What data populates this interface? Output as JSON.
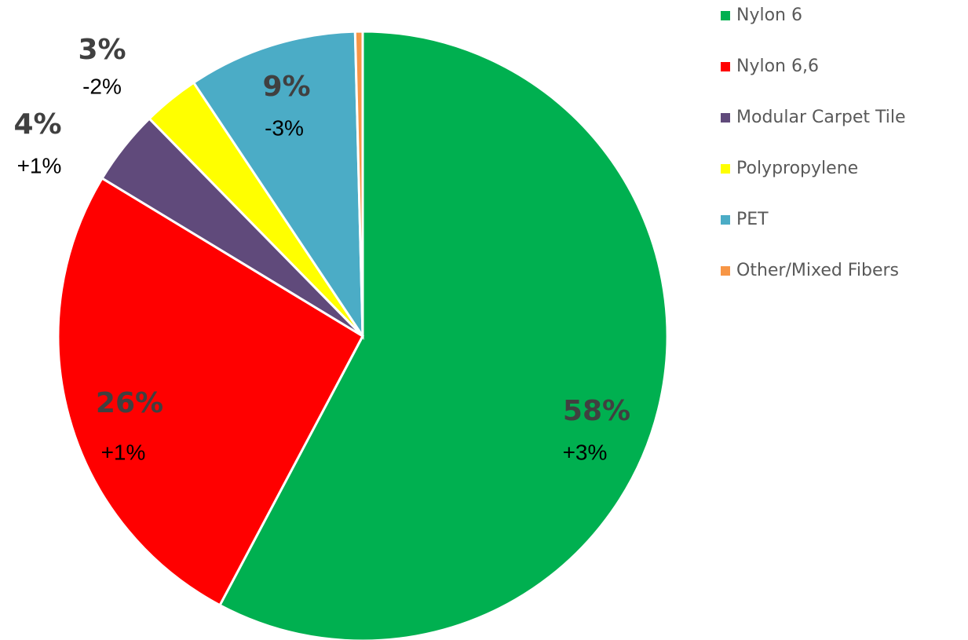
{
  "chart_data": {
    "type": "pie",
    "categories": [
      "Nylon 6",
      "Nylon 6,6",
      "Modular Carpet Tile",
      "Polypropylene",
      "PET",
      "Other/Mixed Fibers"
    ],
    "values": [
      58,
      26,
      4,
      3,
      9,
      0.4
    ],
    "value_labels": [
      "58%",
      "26%",
      "4%",
      "3%",
      "9%",
      null
    ],
    "changes": [
      "+3%",
      "+1%",
      "+1%",
      "-2%",
      "-3%",
      null
    ],
    "colors": [
      "#00b050",
      "#ff0000",
      "#604a7b",
      "#ffff00",
      "#4bacc6",
      "#f79646"
    ],
    "legend": "right"
  }
}
